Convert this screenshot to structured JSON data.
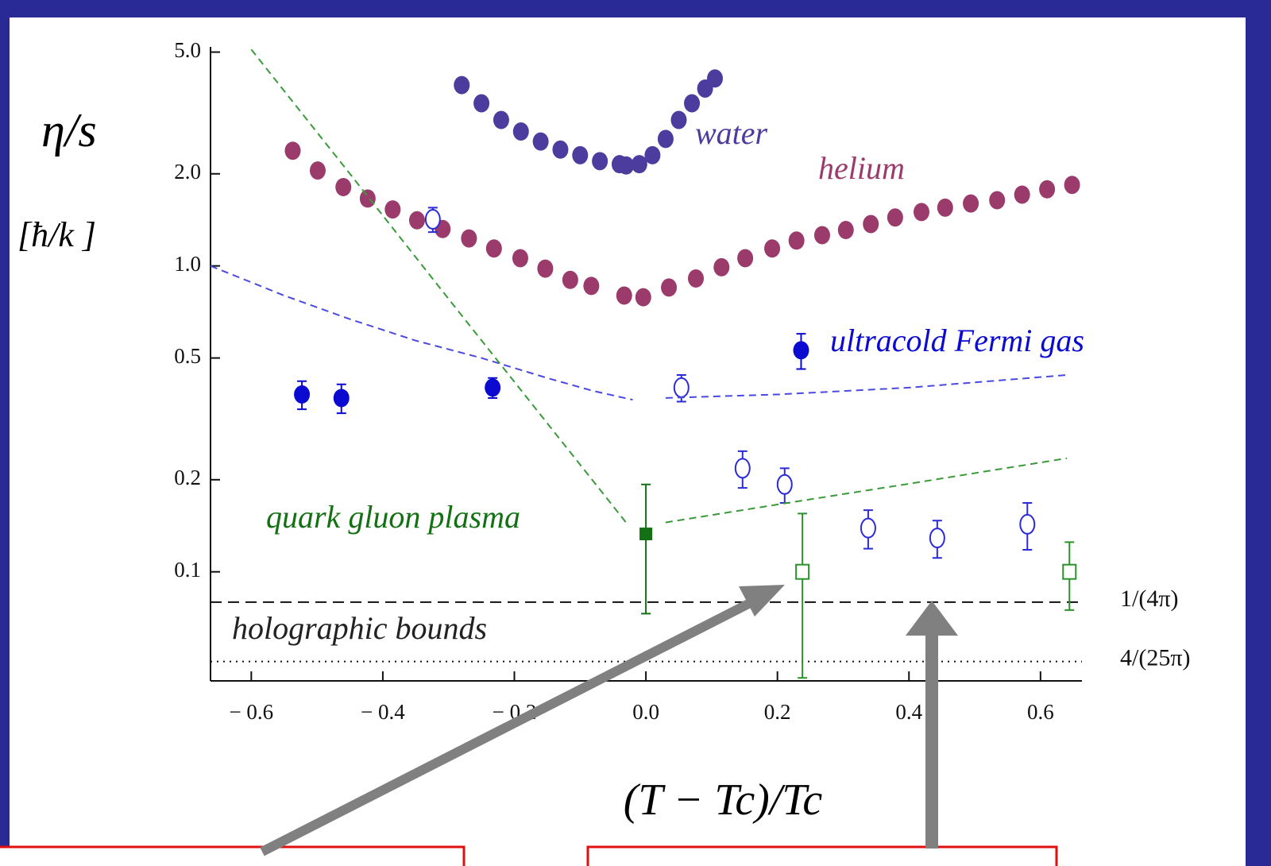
{
  "chart_data": {
    "type": "scatter",
    "y_label": "η/s",
    "y_unit": "[ħ/k ]",
    "x_label": "(T − Tc)/Tc",
    "ylog": true,
    "grid": false,
    "xlim": [
      -0.662,
      0.663
    ],
    "ylim": [
      0.044,
      5.2
    ],
    "xticks": [
      {
        "value": -0.6,
        "label": "− 0.6"
      },
      {
        "value": -0.4,
        "label": "− 0.4"
      },
      {
        "value": -0.2,
        "label": "− 0.2"
      },
      {
        "value": 0,
        "label": "0.0"
      },
      0.2,
      0.4,
      0.6
    ],
    "yticks": [
      0.1,
      0.2,
      0.5,
      {
        "value": 1,
        "label": "1.0"
      },
      {
        "value": 2,
        "label": "2.0"
      },
      {
        "value": 5,
        "label": "5.0"
      }
    ],
    "hlines": [
      {
        "value": 0.0796,
        "label": "1/(4π)",
        "style": "dashed"
      },
      {
        "value": 0.0509,
        "label": "4/(25π)",
        "style": "dotted"
      }
    ],
    "annotations": [
      "holographic bounds"
    ],
    "series": [
      {
        "name": "water",
        "color": "#4b3c9e",
        "marker": "circle",
        "x": [
          -0.28,
          -0.25,
          -0.22,
          -0.19,
          -0.16,
          -0.13,
          -0.1,
          -0.07,
          -0.04,
          -0.03,
          -0.01,
          0.01,
          0.03,
          0.05,
          0.07,
          0.09,
          0.105
        ],
        "values": [
          3.9,
          3.4,
          3.0,
          2.75,
          2.55,
          2.4,
          2.3,
          2.2,
          2.15,
          2.13,
          2.15,
          2.3,
          2.6,
          3.0,
          3.4,
          3.8,
          4.1
        ]
      },
      {
        "name": "helium",
        "color": "#9b3b6b",
        "marker": "circle",
        "x": [
          -0.537,
          -0.499,
          -0.46,
          -0.423,
          -0.385,
          -0.348,
          -0.309,
          -0.269,
          -0.231,
          -0.191,
          -0.153,
          -0.115,
          -0.083,
          -0.033,
          -0.004,
          0.035,
          0.076,
          0.115,
          0.151,
          0.192,
          0.229,
          0.268,
          0.304,
          0.342,
          0.379,
          0.419,
          0.455,
          0.494,
          0.534,
          0.572,
          0.61,
          0.648
        ],
        "values": [
          2.38,
          2.05,
          1.81,
          1.66,
          1.53,
          1.41,
          1.32,
          1.23,
          1.14,
          1.06,
          0.98,
          0.9,
          0.86,
          0.8,
          0.79,
          0.85,
          0.91,
          0.99,
          1.06,
          1.14,
          1.21,
          1.26,
          1.31,
          1.37,
          1.44,
          1.5,
          1.55,
          1.6,
          1.64,
          1.71,
          1.78,
          1.84
        ]
      },
      {
        "name": "ultracold Fermi gas",
        "color": "#0a0ad0",
        "marker": "circle",
        "x": [
          -0.523,
          -0.463,
          -0.233,
          0.236
        ],
        "values": [
          0.38,
          0.37,
          0.4,
          0.53
        ],
        "errors": [
          0.04,
          0.04,
          0.03,
          0.07
        ]
      },
      {
        "color": "#2b2bd8",
        "marker": "open-circle",
        "x": [
          -0.324,
          0.054,
          0.147,
          0.211,
          0.338,
          0.443,
          0.58
        ],
        "values": [
          1.42,
          0.4,
          0.218,
          0.193,
          0.139,
          0.129,
          0.143
        ],
        "errors": [
          0.13,
          0.04,
          0.03,
          0.025,
          0.02,
          0.018,
          0.025
        ]
      },
      {
        "name": "quark gluon plasma",
        "color": "#137013",
        "marker": "square",
        "x": [
          0
        ],
        "values": [
          0.133
        ],
        "errors": [
          0.06
        ]
      },
      {
        "color": "#2a922a",
        "marker": "open-square",
        "x": [
          0.238,
          0.644
        ],
        "values": [
          0.1,
          0.1
        ],
        "errors": [
          0.055,
          0.025
        ]
      },
      {
        "color": "#4a4ae0",
        "marker": "none",
        "line": "dashed",
        "x": [
          -0.662,
          -0.55,
          -0.45,
          -0.35,
          -0.25,
          -0.15,
          -0.08,
          -0.02,
          0,
          0.03,
          0.2,
          0.4,
          0.64
        ],
        "values": [
          1.0,
          0.8,
          0.67,
          0.57,
          0.5,
          0.43,
          0.39,
          0.365,
          null,
          0.37,
          0.38,
          0.4,
          0.44
        ]
      },
      {
        "color": "#3a9a3a",
        "marker": "none",
        "line": "dashed",
        "x": [
          -0.6,
          -0.45,
          -0.3,
          -0.15,
          -0.028,
          0,
          0.03,
          0.2,
          0.4,
          0.64
        ],
        "values": [
          5.1,
          2.0,
          0.78,
          0.306,
          0.143,
          null,
          0.145,
          0.166,
          0.194,
          0.235
        ]
      }
    ]
  }
}
